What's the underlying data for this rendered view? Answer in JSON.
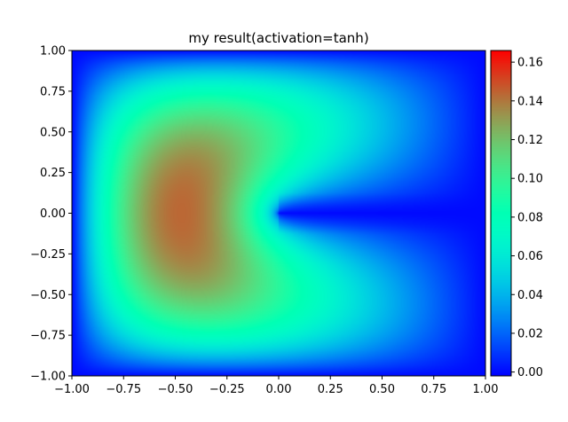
{
  "chart_data": {
    "type": "heatmap",
    "title": "my result(activation=tanh)",
    "xlabel": "",
    "ylabel": "",
    "xlim": [
      -1.0,
      1.0
    ],
    "ylim": [
      -1.0,
      1.0
    ],
    "x_ticks": [
      "−1.00",
      "−0.75",
      "−0.50",
      "−0.25",
      "0.00",
      "0.25",
      "0.50",
      "0.75",
      "1.00"
    ],
    "x_tick_values": [
      -1.0,
      -0.75,
      -0.5,
      -0.25,
      0.0,
      0.25,
      0.5,
      0.75,
      1.0
    ],
    "y_ticks": [
      "−1.00",
      "−0.75",
      "−0.50",
      "−0.25",
      "0.00",
      "0.25",
      "0.50",
      "0.75",
      "1.00"
    ],
    "y_tick_values": [
      -1.0,
      -0.75,
      -0.5,
      -0.25,
      0.0,
      0.25,
      0.5,
      0.75,
      1.0
    ],
    "colormap": "rainbow",
    "colorbar": {
      "vmin": -0.002,
      "vmax": 0.166,
      "ticks": [
        "0.00",
        "0.02",
        "0.04",
        "0.06",
        "0.08",
        "0.10",
        "0.12",
        "0.14",
        "0.16"
      ],
      "tick_values": [
        0.0,
        0.02,
        0.04,
        0.06,
        0.08,
        0.1,
        0.12,
        0.14,
        0.16
      ]
    },
    "field_description": "Solution u(x,y) on a square domain with a slit along y=0 for x in [0,1]; zero on boundary and on slit; maximum near (-0.35, 0.0) about 0.16",
    "grid": false,
    "legend": "none"
  }
}
